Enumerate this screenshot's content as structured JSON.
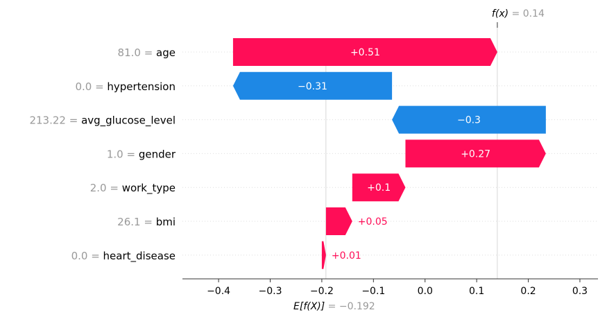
{
  "chart_data": {
    "type": "waterfall",
    "fx_label": "f(x)",
    "fx_value": "0.14",
    "ex_label": "E[f(X)]",
    "ex_value": "−0.192",
    "base_value": -0.192,
    "final_value": 0.14,
    "xlim": [
      -0.47,
      0.335
    ],
    "xticks": [
      -0.4,
      -0.3,
      -0.2,
      -0.1,
      0.0,
      0.1,
      0.2,
      0.3
    ],
    "xtick_labels": [
      "−0.4",
      "−0.3",
      "−0.2",
      "−0.1",
      "0.0",
      "0.1",
      "0.2",
      "0.3"
    ],
    "features": [
      {
        "value": "81.0",
        "name": "age",
        "contribution": 0.51,
        "label": "+0.51",
        "start": -0.372,
        "end": 0.14
      },
      {
        "value": "0.0",
        "name": "hypertension",
        "contribution": -0.31,
        "label": "−0.31",
        "start": -0.064,
        "end": -0.372
      },
      {
        "value": "213.22",
        "name": "avg_glucose_level",
        "contribution": -0.3,
        "label": "−0.3",
        "start": 0.234,
        "end": -0.064
      },
      {
        "value": "1.0",
        "name": "gender",
        "contribution": 0.27,
        "label": "+0.27",
        "start": -0.038,
        "end": 0.234
      },
      {
        "value": "2.0",
        "name": "work_type",
        "contribution": 0.1,
        "label": "+0.1",
        "start": -0.141,
        "end": -0.038
      },
      {
        "value": "26.1",
        "name": "bmi",
        "contribution": 0.05,
        "label": "+0.05",
        "start": -0.192,
        "end": -0.141
      },
      {
        "value": "0.0",
        "name": "heart_disease",
        "contribution": 0.01,
        "label": "+0.01",
        "start": -0.2,
        "end": -0.192
      }
    ],
    "colors": {
      "positive": "#ff0d57",
      "negative": "#1e88e5",
      "gridline": "#cccccc",
      "muted": "#999999"
    }
  }
}
